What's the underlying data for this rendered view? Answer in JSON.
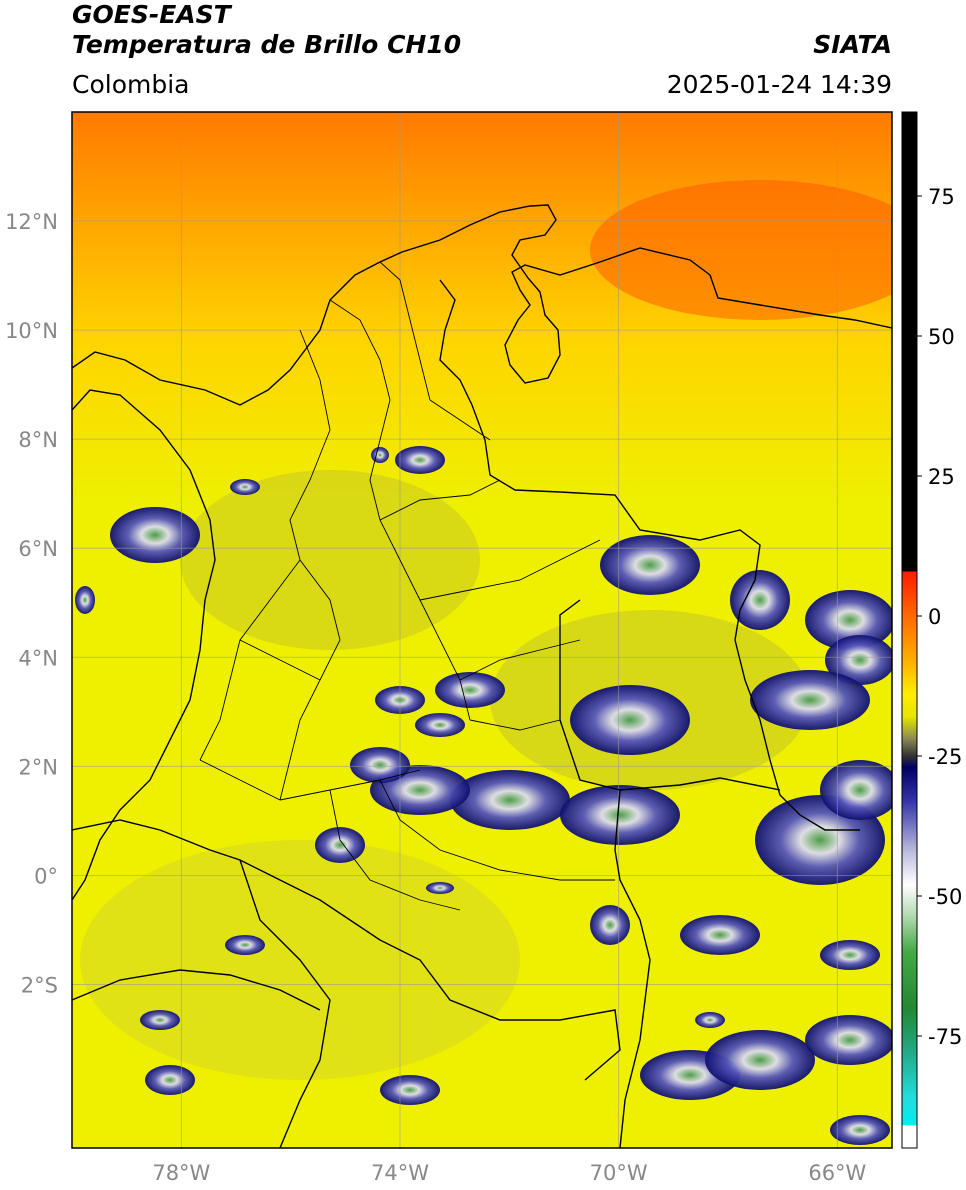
{
  "header": {
    "satellite": "GOES-EAST",
    "product": "Temperatura de Brillo CH10",
    "region": "Colombia",
    "agency": "SIATA",
    "timestamp": "2025-01-24 14:39"
  },
  "map": {
    "lon_range": [
      -80,
      -65
    ],
    "lat_range": [
      -5,
      14
    ],
    "lat_ticks": [
      {
        "value": 12,
        "label": "12°N"
      },
      {
        "value": 10,
        "label": "10°N"
      },
      {
        "value": 8,
        "label": "8°N"
      },
      {
        "value": 6,
        "label": "6°N"
      },
      {
        "value": 4,
        "label": "4°N"
      },
      {
        "value": 2,
        "label": "2°N"
      },
      {
        "value": 0,
        "label": "0°"
      },
      {
        "value": -2,
        "label": "2°S"
      }
    ],
    "lon_ticks": [
      {
        "value": -78,
        "label": "78°W"
      },
      {
        "value": -74,
        "label": "74°W"
      },
      {
        "value": -70,
        "label": "70°W"
      },
      {
        "value": -66,
        "label": "66°W"
      }
    ],
    "grid": true
  },
  "colorbar": {
    "range": [
      -95,
      90
    ],
    "ticks": [
      75,
      50,
      25,
      0,
      -25,
      -50,
      -75
    ],
    "stops": [
      {
        "value": 90,
        "color": "#000000"
      },
      {
        "value": 8,
        "color": "#000000"
      },
      {
        "value": 7.9,
        "color": "#ff1a00"
      },
      {
        "value": 0,
        "color": "#ff6a00"
      },
      {
        "value": -8,
        "color": "#ffb000"
      },
      {
        "value": -14,
        "color": "#ffee00"
      },
      {
        "value": -18,
        "color": "#e6e600"
      },
      {
        "value": -22,
        "color": "#888855"
      },
      {
        "value": -25,
        "color": "#333333"
      },
      {
        "value": -27,
        "color": "#000066"
      },
      {
        "value": -33,
        "color": "#3333aa"
      },
      {
        "value": -42,
        "color": "#bbbbdd"
      },
      {
        "value": -48,
        "color": "#ffffff"
      },
      {
        "value": -53,
        "color": "#bbddbb"
      },
      {
        "value": -60,
        "color": "#44aa44"
      },
      {
        "value": -70,
        "color": "#228833"
      },
      {
        "value": -78,
        "color": "#22aa88"
      },
      {
        "value": -86,
        "color": "#22dddd"
      },
      {
        "value": -90.9,
        "color": "#00eeee"
      },
      {
        "value": -91,
        "color": "#ffffff"
      },
      {
        "value": -95,
        "color": "#ffffff"
      }
    ]
  },
  "colors": {
    "hot_field": "#ff7a00",
    "mid_field": "#ffd400",
    "cool_field": "#eef000",
    "cloud_dark": "#101070",
    "cloud_mid": "#5555bb",
    "cloud_light": "#ddddee",
    "cloud_core": "#44994a",
    "border": "#000000",
    "grid": "#9a9a9a"
  }
}
